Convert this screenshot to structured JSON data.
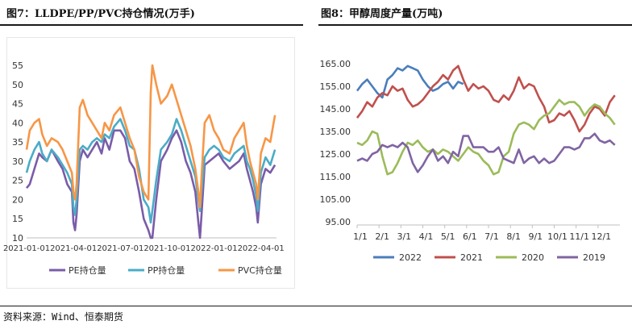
{
  "figures": {
    "left_title": "图7：LLDPE/PP/PVC持仓情况(万手)",
    "right_title": "图8：甲醇周度产量(万吨)"
  },
  "source": "资料来源：Wind、恒泰期货",
  "colors": {
    "PE": "#7a5ca8",
    "PP": "#4bacc6",
    "PVC": "#f79646",
    "2022": "#4a7ebb",
    "2021": "#c0504d",
    "2020": "#9bbb59",
    "2019": "#8064a2"
  },
  "chart_data": [
    {
      "type": "line",
      "title": "图7：LLDPE/PP/PVC持仓情况(万手)",
      "ylim": [
        10,
        55
      ],
      "yticks": [
        "55",
        "50",
        "45",
        "40",
        "35",
        "30",
        "25",
        "20",
        "15",
        "10"
      ],
      "xtick_labels": [
        "2021-01-01",
        "2021-04-01",
        "2021-07-01",
        "2021-10-01",
        "2022-01-01",
        "2022-04-01"
      ],
      "xlim_months": [
        0,
        16
      ],
      "legend": "bottom",
      "series": [
        {
          "name": "PE持仓量",
          "key": "PE",
          "x": [
            0,
            0.2,
            0.5,
            0.8,
            1.0,
            1.3,
            1.6,
            2.0,
            2.3,
            2.6,
            2.9,
            3.0,
            3.1,
            3.2,
            3.4,
            3.6,
            3.9,
            4.2,
            4.5,
            4.8,
            5.0,
            5.3,
            5.6,
            6.0,
            6.3,
            6.6,
            6.9,
            7.2,
            7.5,
            7.8,
            7.95,
            8.05,
            8.3,
            8.6,
            9.0,
            9.3,
            9.6,
            9.9,
            10.2,
            10.5,
            10.8,
            11.0,
            11.1,
            11.2,
            11.4,
            11.7,
            12.0,
            12.3,
            12.6,
            13.0,
            13.3,
            13.6,
            13.9,
            14.1,
            14.3,
            14.5,
            14.7,
            14.8,
            15.0,
            15.3,
            15.6,
            15.9
          ],
          "y": [
            23,
            24,
            28,
            32,
            31,
            30,
            33,
            30,
            28,
            24,
            22,
            14,
            12,
            16,
            30,
            33,
            31,
            33,
            35,
            32,
            36,
            33,
            38,
            38,
            36,
            30,
            28,
            22,
            15,
            12,
            8,
            10,
            20,
            30,
            33,
            36,
            38,
            35,
            30,
            27,
            22,
            14,
            10,
            16,
            29,
            30,
            31,
            32,
            30,
            28,
            29,
            30,
            32,
            28,
            25,
            22,
            18,
            14,
            24,
            28,
            27,
            29
          ]
        },
        {
          "name": "PP持仓量",
          "key": "PP",
          "x": [
            0,
            0.2,
            0.5,
            0.8,
            1.0,
            1.3,
            1.6,
            2.0,
            2.3,
            2.6,
            2.9,
            3.0,
            3.1,
            3.2,
            3.4,
            3.6,
            3.9,
            4.2,
            4.5,
            4.8,
            5.0,
            5.3,
            5.6,
            6.0,
            6.3,
            6.6,
            6.9,
            7.2,
            7.5,
            7.8,
            7.95,
            8.05,
            8.3,
            8.6,
            9.0,
            9.3,
            9.6,
            9.9,
            10.2,
            10.5,
            10.8,
            11.0,
            11.1,
            11.2,
            11.4,
            11.7,
            12.0,
            12.3,
            12.6,
            13.0,
            13.3,
            13.6,
            13.9,
            14.1,
            14.3,
            14.5,
            14.7,
            14.8,
            15.0,
            15.3,
            15.6,
            15.9
          ],
          "y": [
            27,
            30,
            33,
            35,
            32,
            30,
            33,
            31,
            29,
            27,
            24,
            18,
            16,
            20,
            33,
            34,
            33,
            35,
            36,
            35,
            37,
            36,
            39,
            41,
            38,
            34,
            33,
            28,
            20,
            18,
            14,
            17,
            25,
            33,
            35,
            37,
            41,
            38,
            34,
            30,
            26,
            20,
            17,
            22,
            31,
            33,
            34,
            33,
            31,
            30,
            32,
            33,
            34,
            30,
            28,
            25,
            21,
            17,
            27,
            31,
            29,
            33
          ]
        },
        {
          "name": "PVC持仓量",
          "key": "PVC",
          "x": [
            0,
            0.2,
            0.5,
            0.8,
            1.0,
            1.3,
            1.6,
            2.0,
            2.3,
            2.6,
            2.9,
            3.0,
            3.1,
            3.2,
            3.4,
            3.6,
            3.9,
            4.2,
            4.5,
            4.8,
            5.0,
            5.3,
            5.6,
            6.0,
            6.3,
            6.6,
            6.9,
            7.2,
            7.5,
            7.8,
            7.95,
            8.05,
            8.3,
            8.6,
            9.0,
            9.3,
            9.6,
            9.9,
            10.2,
            10.5,
            10.8,
            11.0,
            11.1,
            11.2,
            11.4,
            11.7,
            12.0,
            12.3,
            12.6,
            13.0,
            13.3,
            13.6,
            13.9,
            14.1,
            14.3,
            14.5,
            14.7,
            14.8,
            15.0,
            15.3,
            15.6,
            15.9
          ],
          "y": [
            33,
            38,
            40,
            41,
            37,
            34,
            36,
            35,
            33,
            30,
            27,
            22,
            20,
            24,
            44,
            46,
            42,
            40,
            38,
            36,
            40,
            38,
            42,
            44,
            40,
            36,
            33,
            26,
            22,
            20,
            48,
            55,
            50,
            45,
            47,
            50,
            46,
            42,
            38,
            34,
            28,
            22,
            18,
            26,
            40,
            42,
            38,
            36,
            33,
            32,
            36,
            38,
            40,
            34,
            30,
            27,
            24,
            20,
            32,
            36,
            35,
            42
          ]
        }
      ]
    },
    {
      "type": "line",
      "title": "图8：甲醇周度产量(万吨)",
      "ylim": [
        95,
        165
      ],
      "yticks": [
        "165.00",
        "155.00",
        "145.00",
        "135.00",
        "125.00",
        "115.00",
        "105.00",
        "95.00"
      ],
      "xtick_labels": [
        "1/1",
        "2/1",
        "3/1",
        "4/1",
        "5/1",
        "6/1",
        "7/1",
        "8/1",
        "9/1",
        "10/1",
        "11/1",
        "12/1"
      ],
      "xlim_weeks": [
        0,
        52
      ],
      "legend": "bottom",
      "series": [
        {
          "name": "2022",
          "key": "2022",
          "x": [
            0,
            1,
            2,
            3,
            4,
            5,
            6,
            7,
            8,
            9,
            10,
            11,
            12,
            13,
            14,
            15,
            16,
            17,
            18,
            19,
            20,
            21
          ],
          "y": [
            153,
            156,
            158,
            155,
            152,
            150,
            158,
            160,
            163,
            162,
            164,
            163,
            162,
            158,
            155,
            153,
            154,
            156,
            157,
            154,
            157,
            156
          ]
        },
        {
          "name": "2021",
          "key": "2021",
          "x": [
            0,
            1,
            2,
            3,
            4,
            5,
            6,
            7,
            8,
            9,
            10,
            11,
            12,
            13,
            14,
            15,
            16,
            17,
            18,
            19,
            20,
            21,
            22,
            23,
            24,
            25,
            26,
            27,
            28,
            29,
            30,
            31,
            32,
            33,
            34,
            35,
            36,
            37,
            38,
            39,
            40,
            41,
            42,
            43,
            44,
            45,
            46,
            47,
            48,
            49,
            50,
            51
          ],
          "y": [
            141,
            144,
            148,
            146,
            150,
            152,
            151,
            155,
            153,
            154,
            149,
            146,
            147,
            149,
            152,
            155,
            157,
            160,
            158,
            162,
            164,
            158,
            153,
            156,
            154,
            155,
            153,
            149,
            148,
            151,
            149,
            153,
            159,
            154,
            156,
            155,
            150,
            146,
            139,
            140,
            143,
            142,
            144,
            140,
            135,
            138,
            143,
            146,
            145,
            142,
            148,
            151
          ]
        },
        {
          "name": "2020",
          "key": "2020",
          "x": [
            0,
            1,
            2,
            3,
            4,
            5,
            6,
            7,
            8,
            9,
            10,
            11,
            12,
            13,
            14,
            15,
            16,
            17,
            18,
            19,
            20,
            21,
            22,
            23,
            24,
            25,
            26,
            27,
            28,
            29,
            30,
            31,
            32,
            33,
            34,
            35,
            36,
            37,
            38,
            39,
            40,
            41,
            42,
            43,
            44,
            45,
            46,
            47,
            48,
            49,
            50,
            51
          ],
          "y": [
            130,
            129,
            131,
            135,
            134,
            124,
            116,
            117,
            121,
            126,
            130,
            129,
            131,
            128,
            126,
            127,
            125,
            127,
            126,
            124,
            122,
            125,
            128,
            126,
            125,
            122,
            120,
            116,
            117,
            124,
            126,
            134,
            138,
            139,
            138,
            136,
            140,
            142,
            143,
            146,
            149,
            147,
            148,
            148,
            146,
            142,
            145,
            147,
            146,
            143,
            141,
            138
          ]
        },
        {
          "name": "2019",
          "key": "2019",
          "x": [
            0,
            1,
            2,
            3,
            4,
            5,
            6,
            7,
            8,
            9,
            10,
            11,
            12,
            13,
            14,
            15,
            16,
            17,
            18,
            19,
            20,
            21,
            22,
            23,
            24,
            25,
            26,
            27,
            28,
            29,
            30,
            31,
            32,
            33,
            34,
            35,
            36,
            37,
            38,
            39,
            40,
            41,
            42,
            43,
            44,
            45,
            46,
            47,
            48,
            49,
            50,
            51
          ],
          "y": [
            122,
            123,
            122,
            125,
            126,
            129,
            128,
            129,
            128,
            130,
            128,
            121,
            117,
            120,
            124,
            127,
            122,
            124,
            121,
            126,
            124,
            133,
            133,
            128,
            128,
            128,
            126,
            126,
            128,
            123,
            122,
            121,
            127,
            121,
            123,
            124,
            121,
            123,
            121,
            122,
            125,
            128,
            128,
            127,
            128,
            132,
            132,
            134,
            131,
            130,
            131,
            129
          ]
        }
      ]
    }
  ]
}
